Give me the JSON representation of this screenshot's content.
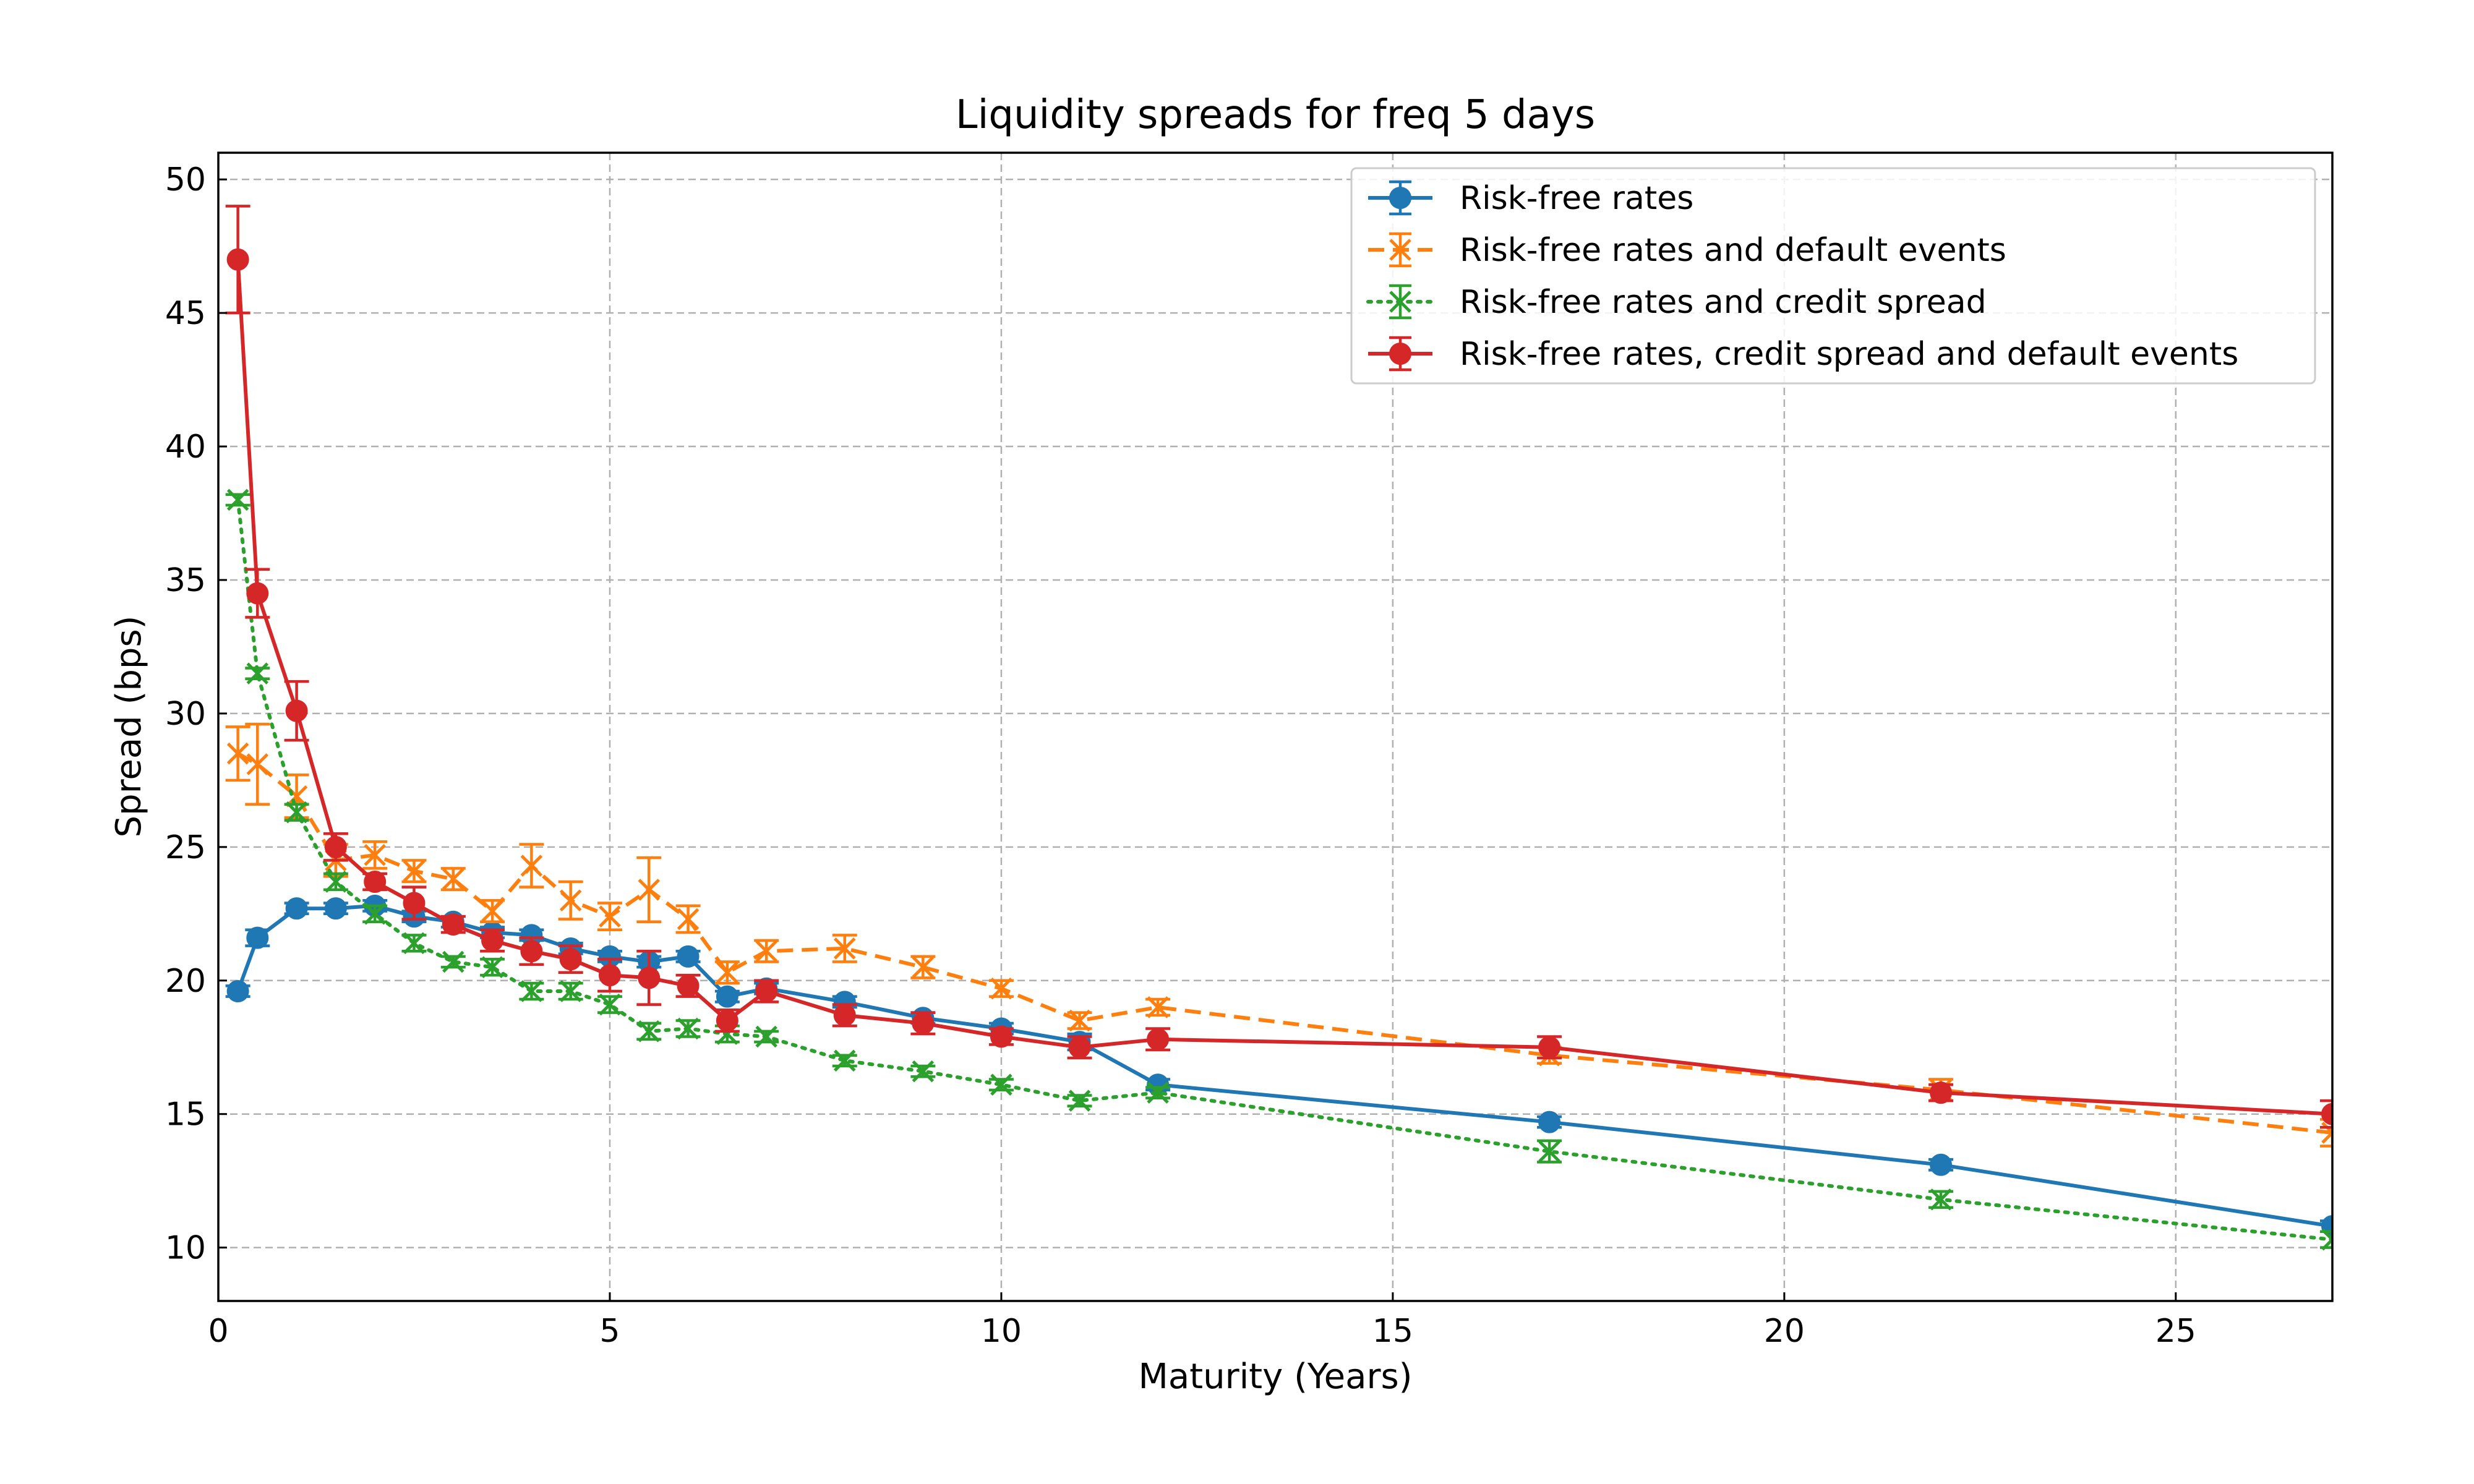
{
  "chart_data": {
    "type": "line",
    "title": "Liquidity spreads for freq 5 days",
    "xlabel": "Maturity (Years)",
    "ylabel": "Spread (bps)",
    "xlim": [
      0,
      27
    ],
    "ylim": [
      8,
      51
    ],
    "xticks": [
      0,
      5,
      10,
      15,
      20,
      25
    ],
    "yticks": [
      10,
      15,
      20,
      25,
      30,
      35,
      40,
      45,
      50
    ],
    "grid": true,
    "legend_position": "top-right",
    "series": [
      {
        "name": "Risk-free rates",
        "color": "#1f77b4",
        "line_style": "solid",
        "marker": "circle",
        "points": [
          {
            "x": 0.25,
            "y": 19.6,
            "err": 0.2
          },
          {
            "x": 0.5,
            "y": 21.6,
            "err": 0.3
          },
          {
            "x": 1,
            "y": 22.7,
            "err": 0.2
          },
          {
            "x": 1.5,
            "y": 22.7,
            "err": 0.2
          },
          {
            "x": 2,
            "y": 22.8,
            "err": 0.2
          },
          {
            "x": 2.5,
            "y": 22.4,
            "err": 0.2
          },
          {
            "x": 3,
            "y": 22.2,
            "err": 0.2
          },
          {
            "x": 3.5,
            "y": 21.8,
            "err": 0.2
          },
          {
            "x": 4,
            "y": 21.7,
            "err": 0.2
          },
          {
            "x": 4.5,
            "y": 21.2,
            "err": 0.2
          },
          {
            "x": 5,
            "y": 20.9,
            "err": 0.2
          },
          {
            "x": 5.5,
            "y": 20.7,
            "err": 0.2
          },
          {
            "x": 6,
            "y": 20.9,
            "err": 0.2
          },
          {
            "x": 6.5,
            "y": 19.4,
            "err": 0.2
          },
          {
            "x": 7,
            "y": 19.7,
            "err": 0.2
          },
          {
            "x": 8,
            "y": 19.2,
            "err": 0.2
          },
          {
            "x": 9,
            "y": 18.6,
            "err": 0.2
          },
          {
            "x": 10,
            "y": 18.2,
            "err": 0.2
          },
          {
            "x": 11,
            "y": 17.7,
            "err": 0.3
          },
          {
            "x": 12,
            "y": 16.1,
            "err": 0.2
          },
          {
            "x": 17,
            "y": 14.7,
            "err": 0.2
          },
          {
            "x": 22,
            "y": 13.1,
            "err": 0.2
          },
          {
            "x": 27,
            "y": 10.8,
            "err": 0.2
          }
        ]
      },
      {
        "name": "Risk-free rates and default events",
        "color": "#ff7f0e",
        "line_style": "dashed",
        "marker": "x",
        "points": [
          {
            "x": 0.25,
            "y": 28.5,
            "err": 1.0
          },
          {
            "x": 0.5,
            "y": 28.1,
            "err": 1.5
          },
          {
            "x": 1,
            "y": 26.9,
            "err": 0.8
          },
          {
            "x": 1.5,
            "y": 24.5,
            "err": 0.6
          },
          {
            "x": 2,
            "y": 24.7,
            "err": 0.5
          },
          {
            "x": 2.5,
            "y": 24.1,
            "err": 0.4
          },
          {
            "x": 3,
            "y": 23.8,
            "err": 0.4
          },
          {
            "x": 3.5,
            "y": 22.6,
            "err": 0.4
          },
          {
            "x": 4,
            "y": 24.3,
            "err": 0.8
          },
          {
            "x": 4.5,
            "y": 23.0,
            "err": 0.7
          },
          {
            "x": 5,
            "y": 22.4,
            "err": 0.5
          },
          {
            "x": 5.5,
            "y": 23.4,
            "err": 1.2
          },
          {
            "x": 6,
            "y": 22.3,
            "err": 0.5
          },
          {
            "x": 6.5,
            "y": 20.3,
            "err": 0.4
          },
          {
            "x": 7,
            "y": 21.1,
            "err": 0.4
          },
          {
            "x": 8,
            "y": 21.2,
            "err": 0.5
          },
          {
            "x": 9,
            "y": 20.5,
            "err": 0.4
          },
          {
            "x": 10,
            "y": 19.7,
            "err": 0.3
          },
          {
            "x": 11,
            "y": 18.5,
            "err": 0.3
          },
          {
            "x": 12,
            "y": 19.0,
            "err": 0.3
          },
          {
            "x": 17,
            "y": 17.2,
            "err": 0.3
          },
          {
            "x": 22,
            "y": 15.9,
            "err": 0.4
          },
          {
            "x": 27,
            "y": 14.3,
            "err": 0.5
          }
        ]
      },
      {
        "name": "Risk-free rates and credit spread",
        "color": "#2ca02c",
        "line_style": "dotted",
        "marker": "x",
        "points": [
          {
            "x": 0.25,
            "y": 38.0,
            "err": 0.2
          },
          {
            "x": 0.5,
            "y": 31.5,
            "err": 0.2
          },
          {
            "x": 1,
            "y": 26.3,
            "err": 0.3
          },
          {
            "x": 1.5,
            "y": 23.7,
            "err": 0.3
          },
          {
            "x": 2,
            "y": 22.5,
            "err": 0.3
          },
          {
            "x": 2.5,
            "y": 21.4,
            "err": 0.3
          },
          {
            "x": 3,
            "y": 20.7,
            "err": 0.2
          },
          {
            "x": 3.5,
            "y": 20.5,
            "err": 0.3
          },
          {
            "x": 4,
            "y": 19.6,
            "err": 0.3
          },
          {
            "x": 4.5,
            "y": 19.6,
            "err": 0.3
          },
          {
            "x": 5,
            "y": 19.1,
            "err": 0.3
          },
          {
            "x": 5.5,
            "y": 18.1,
            "err": 0.3
          },
          {
            "x": 6,
            "y": 18.2,
            "err": 0.3
          },
          {
            "x": 6.5,
            "y": 18.0,
            "err": 0.3
          },
          {
            "x": 7,
            "y": 17.9,
            "err": 0.2
          },
          {
            "x": 8,
            "y": 17.0,
            "err": 0.2
          },
          {
            "x": 9,
            "y": 16.6,
            "err": 0.2
          },
          {
            "x": 10,
            "y": 16.1,
            "err": 0.2
          },
          {
            "x": 11,
            "y": 15.5,
            "err": 0.2
          },
          {
            "x": 12,
            "y": 15.8,
            "err": 0.2
          },
          {
            "x": 17,
            "y": 13.6,
            "err": 0.4
          },
          {
            "x": 22,
            "y": 11.8,
            "err": 0.3
          },
          {
            "x": 27,
            "y": 10.3,
            "err": 0.3
          }
        ]
      },
      {
        "name": "Risk-free rates, credit spread and default events",
        "color": "#d62728",
        "line_style": "solid",
        "marker": "circle",
        "points": [
          {
            "x": 0.25,
            "y": 47.0,
            "err": 2.0
          },
          {
            "x": 0.5,
            "y": 34.5,
            "err": 0.9
          },
          {
            "x": 1,
            "y": 30.1,
            "err": 1.1
          },
          {
            "x": 1.5,
            "y": 25.0,
            "err": 0.5
          },
          {
            "x": 2,
            "y": 23.7,
            "err": 0.3
          },
          {
            "x": 2.5,
            "y": 22.9,
            "err": 0.6
          },
          {
            "x": 3,
            "y": 22.1,
            "err": 0.3
          },
          {
            "x": 3.5,
            "y": 21.5,
            "err": 0.4
          },
          {
            "x": 4,
            "y": 21.1,
            "err": 0.5
          },
          {
            "x": 4.5,
            "y": 20.8,
            "err": 0.5
          },
          {
            "x": 5,
            "y": 20.2,
            "err": 0.6
          },
          {
            "x": 5.5,
            "y": 20.1,
            "err": 1.0
          },
          {
            "x": 6,
            "y": 19.8,
            "err": 0.4
          },
          {
            "x": 6.5,
            "y": 18.5,
            "err": 0.4
          },
          {
            "x": 7,
            "y": 19.6,
            "err": 0.4
          },
          {
            "x": 8,
            "y": 18.7,
            "err": 0.4
          },
          {
            "x": 9,
            "y": 18.4,
            "err": 0.4
          },
          {
            "x": 10,
            "y": 17.9,
            "err": 0.3
          },
          {
            "x": 11,
            "y": 17.5,
            "err": 0.4
          },
          {
            "x": 12,
            "y": 17.8,
            "err": 0.4
          },
          {
            "x": 17,
            "y": 17.5,
            "err": 0.4
          },
          {
            "x": 22,
            "y": 15.8,
            "err": 0.3
          },
          {
            "x": 27,
            "y": 15.0,
            "err": 0.5
          }
        ]
      }
    ]
  }
}
